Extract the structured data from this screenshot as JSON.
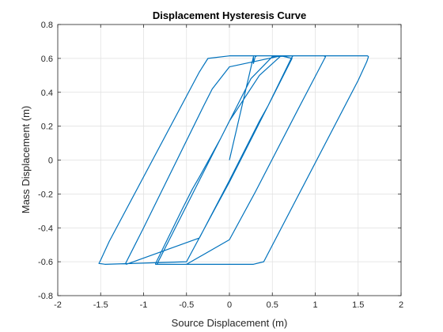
{
  "chart_data": {
    "type": "line",
    "title": "Displacement Hysteresis Curve",
    "xlabel": "Source Displacement (m)",
    "ylabel": "Mass Displacement (m)",
    "xlim": [
      -2,
      2
    ],
    "ylim": [
      -0.8,
      0.8
    ],
    "xticks": [
      -2,
      -1.5,
      -1,
      -0.5,
      0,
      0.5,
      1,
      1.5,
      2
    ],
    "yticks": [
      -0.8,
      -0.6,
      -0.4,
      -0.2,
      0,
      0.2,
      0.4,
      0.6,
      0.8
    ],
    "xtick_labels": [
      "-2",
      "-1.5",
      "-1",
      "-0.5",
      "0",
      "0.5",
      "1",
      "1.5",
      "2"
    ],
    "ytick_labels": [
      "-0.8",
      "-0.6",
      "-0.4",
      "-0.2",
      "0",
      "0.2",
      "0.4",
      "0.6",
      "0.8"
    ],
    "grid": true,
    "series": [
      {
        "color": "#0072BD",
        "x": [
          0.0,
          0.28,
          0.28,
          0.3,
          0.32,
          0.33,
          0.36,
          0.6,
          0.63,
          0.66,
          0.8,
          1.61,
          1.62,
          1.6,
          1.5,
          0.4,
          0.28,
          0.12,
          -0.15,
          -0.73,
          -0.86,
          -0.86,
          -0.55,
          -0.43,
          -0.35,
          -0.1,
          0.25,
          0.5,
          0.74,
          0.72,
          0.45,
          0.35,
          0.0,
          -0.35,
          -1.2,
          -1.21,
          -1.1,
          -1.0,
          -0.3,
          -0.2,
          0.0,
          0.6,
          0.73,
          0.5,
          0.0,
          -0.15,
          -0.5,
          -1.45,
          -1.52,
          -1.5,
          -1.4,
          -0.35,
          -0.25,
          0.0,
          0.8,
          1.1,
          1.12,
          0.8,
          0.3,
          0.0,
          -0.5,
          -0.83,
          -0.84,
          -0.8,
          -0.7,
          -0.1,
          0.0,
          0.35,
          0.6
        ],
        "y": [
          0.0,
          0.61,
          0.57,
          0.61,
          0.615,
          0.615,
          0.615,
          0.615,
          0.615,
          0.615,
          0.615,
          0.615,
          0.61,
          0.58,
          0.47,
          -0.6,
          -0.615,
          -0.615,
          -0.615,
          -0.615,
          -0.615,
          -0.61,
          -0.29,
          -0.17,
          -0.1,
          0.13,
          0.48,
          0.61,
          0.615,
          0.6,
          0.32,
          0.23,
          -0.12,
          -0.46,
          -0.615,
          -0.61,
          -0.5,
          -0.4,
          0.32,
          0.42,
          0.55,
          0.615,
          0.6,
          0.37,
          -0.13,
          -0.27,
          -0.6,
          -0.615,
          -0.61,
          -0.59,
          -0.48,
          0.52,
          0.6,
          0.615,
          0.615,
          0.615,
          0.61,
          0.3,
          -0.19,
          -0.47,
          -0.615,
          -0.615,
          -0.61,
          -0.57,
          -0.47,
          0.13,
          0.23,
          0.5,
          0.615
        ]
      }
    ]
  }
}
